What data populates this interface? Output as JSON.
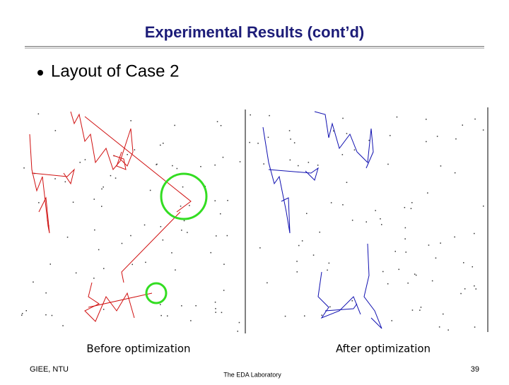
{
  "slide": {
    "title": "Experimental Results (cont’d)",
    "bullets": [
      "Layout of Case 2"
    ],
    "captions": [
      "Before optimization",
      "After optimization"
    ],
    "footer": {
      "left": "GIEE, NTU",
      "center": "The EDA Laboratory",
      "page": "39"
    }
  }
}
